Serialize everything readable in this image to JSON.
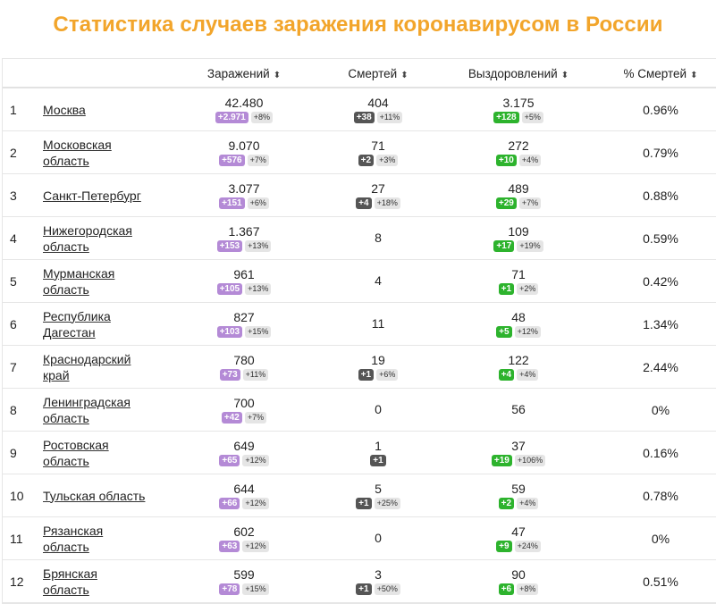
{
  "title": "Статистика случаев заражения коронавирусом в России",
  "columns": {
    "infected": "Заражений",
    "deaths": "Смертей",
    "recovered": "Выздоровлений",
    "death_rate": "% Смертей",
    "sort_icon": "sort-icon"
  },
  "colors": {
    "title": "#f2a52b",
    "infected_badge": "#b48ad6",
    "deaths_badge": "#555555",
    "recovered_badge": "#2db32d"
  },
  "rows": [
    {
      "rank": "1",
      "name_line1": "Москва",
      "name_line2": "",
      "infected": "42.480",
      "inf_delta": "+2.971",
      "inf_pct": "+8%",
      "deaths": "404",
      "d_delta": "+38",
      "d_pct": "+11%",
      "recovered": "3.175",
      "r_delta": "+128",
      "r_pct": "+5%",
      "rate": "0.96%"
    },
    {
      "rank": "2",
      "name_line1": "Московская",
      "name_line2": "область",
      "infected": "9.070",
      "inf_delta": "+576",
      "inf_pct": "+7%",
      "deaths": "71",
      "d_delta": "+2",
      "d_pct": "+3%",
      "recovered": "272",
      "r_delta": "+10",
      "r_pct": "+4%",
      "rate": "0.79%"
    },
    {
      "rank": "3",
      "name_line1": "Санкт-Петербург",
      "name_line2": "",
      "infected": "3.077",
      "inf_delta": "+151",
      "inf_pct": "+6%",
      "deaths": "27",
      "d_delta": "+4",
      "d_pct": "+18%",
      "recovered": "489",
      "r_delta": "+29",
      "r_pct": "+7%",
      "rate": "0.88%"
    },
    {
      "rank": "4",
      "name_line1": "Нижегородская",
      "name_line2": "область",
      "infected": "1.367",
      "inf_delta": "+153",
      "inf_pct": "+13%",
      "deaths": "8",
      "d_delta": "",
      "d_pct": "",
      "recovered": "109",
      "r_delta": "+17",
      "r_pct": "+19%",
      "rate": "0.59%"
    },
    {
      "rank": "5",
      "name_line1": "Мурманская",
      "name_line2": "область",
      "infected": "961",
      "inf_delta": "+105",
      "inf_pct": "+13%",
      "deaths": "4",
      "d_delta": "",
      "d_pct": "",
      "recovered": "71",
      "r_delta": "+1",
      "r_pct": "+2%",
      "rate": "0.42%"
    },
    {
      "rank": "6",
      "name_line1": "Республика",
      "name_line2": "Дагестан",
      "infected": "827",
      "inf_delta": "+103",
      "inf_pct": "+15%",
      "deaths": "11",
      "d_delta": "",
      "d_pct": "",
      "recovered": "48",
      "r_delta": "+5",
      "r_pct": "+12%",
      "rate": "1.34%"
    },
    {
      "rank": "7",
      "name_line1": "Краснодарский",
      "name_line2": "край",
      "infected": "780",
      "inf_delta": "+73",
      "inf_pct": "+11%",
      "deaths": "19",
      "d_delta": "+1",
      "d_pct": "+6%",
      "recovered": "122",
      "r_delta": "+4",
      "r_pct": "+4%",
      "rate": "2.44%"
    },
    {
      "rank": "8",
      "name_line1": "Ленинградская",
      "name_line2": "область",
      "infected": "700",
      "inf_delta": "+42",
      "inf_pct": "+7%",
      "deaths": "0",
      "d_delta": "",
      "d_pct": "",
      "recovered": "56",
      "r_delta": "",
      "r_pct": "",
      "rate": "0%"
    },
    {
      "rank": "9",
      "name_line1": "Ростовская",
      "name_line2": "область",
      "infected": "649",
      "inf_delta": "+65",
      "inf_pct": "+12%",
      "deaths": "1",
      "d_delta": "+1",
      "d_pct": "",
      "recovered": "37",
      "r_delta": "+19",
      "r_pct": "+106%",
      "rate": "0.16%"
    },
    {
      "rank": "10",
      "name_line1": "Тульская область",
      "name_line2": "",
      "infected": "644",
      "inf_delta": "+66",
      "inf_pct": "+12%",
      "deaths": "5",
      "d_delta": "+1",
      "d_pct": "+25%",
      "recovered": "59",
      "r_delta": "+2",
      "r_pct": "+4%",
      "rate": "0.78%"
    },
    {
      "rank": "11",
      "name_line1": "Рязанская",
      "name_line2": "область",
      "infected": "602",
      "inf_delta": "+63",
      "inf_pct": "+12%",
      "deaths": "0",
      "d_delta": "",
      "d_pct": "",
      "recovered": "47",
      "r_delta": "+9",
      "r_pct": "+24%",
      "rate": "0%"
    },
    {
      "rank": "12",
      "name_line1": "Брянская",
      "name_line2": "область",
      "infected": "599",
      "inf_delta": "+78",
      "inf_pct": "+15%",
      "deaths": "3",
      "d_delta": "+1",
      "d_pct": "+50%",
      "recovered": "90",
      "r_delta": "+6",
      "r_pct": "+8%",
      "rate": "0.51%"
    }
  ]
}
